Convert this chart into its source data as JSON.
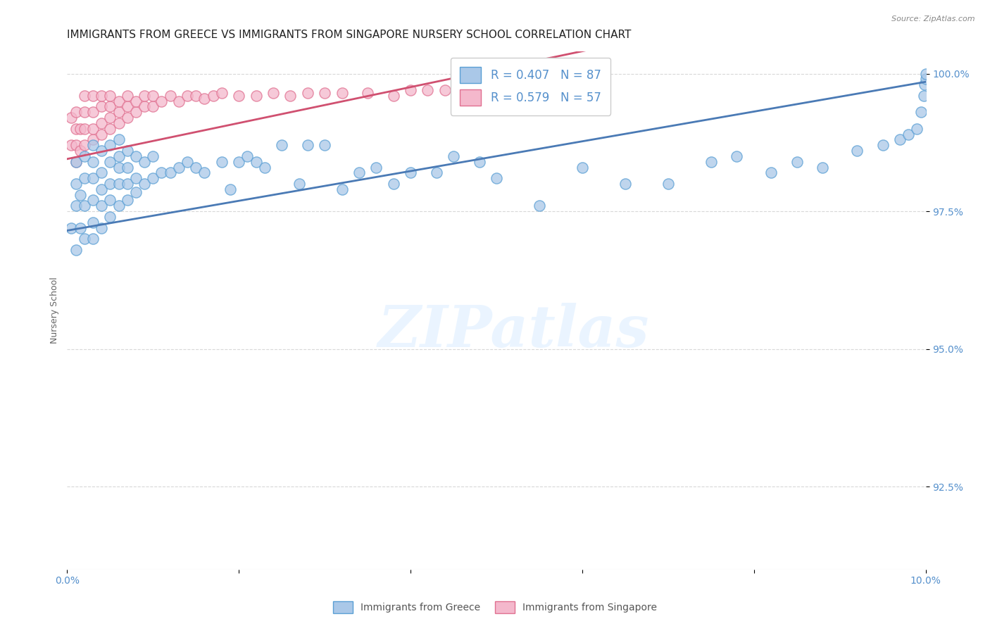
{
  "title": "IMMIGRANTS FROM GREECE VS IMMIGRANTS FROM SINGAPORE NURSERY SCHOOL CORRELATION CHART",
  "source": "Source: ZipAtlas.com",
  "ylabel": "Nursery School",
  "ytick_labels": [
    "92.5%",
    "95.0%",
    "97.5%",
    "100.0%"
  ],
  "ytick_values": [
    0.925,
    0.95,
    0.975,
    1.0
  ],
  "xlim": [
    0.0,
    0.1
  ],
  "ylim": [
    0.91,
    1.004
  ],
  "watermark_text": "ZIPatlas",
  "greece_color": "#aac8e8",
  "greece_edge_color": "#5a9fd4",
  "greece_line_color": "#4a7ab5",
  "singapore_color": "#f4b8cc",
  "singapore_edge_color": "#e07090",
  "singapore_line_color": "#d05070",
  "background_color": "#ffffff",
  "grid_color": "#d8d8d8",
  "tick_color": "#5590cc",
  "title_fontsize": 11,
  "axis_label_fontsize": 9,
  "tick_fontsize": 10,
  "greece_R": 0.407,
  "greece_N": 87,
  "singapore_R": 0.579,
  "singapore_N": 57,
  "greece_trend_x0": 0.0,
  "greece_trend_y0": 0.9715,
  "greece_trend_x1": 0.1,
  "greece_trend_y1": 0.9985,
  "singapore_trend_x0": 0.0,
  "singapore_trend_y0": 0.9845,
  "singapore_trend_x1": 0.046,
  "singapore_trend_y1": 0.9995,
  "greece_scatter_x": [
    0.0005,
    0.001,
    0.001,
    0.001,
    0.001,
    0.0015,
    0.0015,
    0.002,
    0.002,
    0.002,
    0.002,
    0.003,
    0.003,
    0.003,
    0.003,
    0.003,
    0.003,
    0.004,
    0.004,
    0.004,
    0.004,
    0.004,
    0.005,
    0.005,
    0.005,
    0.005,
    0.005,
    0.006,
    0.006,
    0.006,
    0.006,
    0.006,
    0.007,
    0.007,
    0.007,
    0.007,
    0.008,
    0.008,
    0.008,
    0.009,
    0.009,
    0.01,
    0.01,
    0.011,
    0.012,
    0.013,
    0.014,
    0.015,
    0.016,
    0.018,
    0.019,
    0.02,
    0.021,
    0.022,
    0.023,
    0.025,
    0.027,
    0.028,
    0.03,
    0.032,
    0.034,
    0.036,
    0.038,
    0.04,
    0.043,
    0.045,
    0.048,
    0.05,
    0.055,
    0.06,
    0.065,
    0.07,
    0.075,
    0.078,
    0.082,
    0.085,
    0.088,
    0.092,
    0.095,
    0.097,
    0.098,
    0.099,
    0.0995,
    0.0998,
    0.0999,
    0.1,
    0.1
  ],
  "greece_scatter_y": [
    0.972,
    0.968,
    0.976,
    0.98,
    0.984,
    0.972,
    0.978,
    0.97,
    0.976,
    0.981,
    0.985,
    0.97,
    0.973,
    0.977,
    0.981,
    0.984,
    0.987,
    0.972,
    0.976,
    0.979,
    0.982,
    0.986,
    0.974,
    0.977,
    0.98,
    0.984,
    0.987,
    0.976,
    0.98,
    0.983,
    0.985,
    0.988,
    0.977,
    0.98,
    0.983,
    0.986,
    0.9785,
    0.981,
    0.985,
    0.98,
    0.984,
    0.981,
    0.985,
    0.982,
    0.982,
    0.983,
    0.984,
    0.983,
    0.982,
    0.984,
    0.979,
    0.984,
    0.985,
    0.984,
    0.983,
    0.987,
    0.98,
    0.987,
    0.987,
    0.979,
    0.982,
    0.983,
    0.98,
    0.982,
    0.982,
    0.985,
    0.984,
    0.981,
    0.976,
    0.983,
    0.98,
    0.98,
    0.984,
    0.985,
    0.982,
    0.984,
    0.983,
    0.986,
    0.987,
    0.988,
    0.989,
    0.99,
    0.993,
    0.996,
    0.998,
    0.999,
    1.0
  ],
  "singapore_scatter_x": [
    0.0005,
    0.0005,
    0.001,
    0.001,
    0.001,
    0.001,
    0.0015,
    0.0015,
    0.002,
    0.002,
    0.002,
    0.002,
    0.003,
    0.003,
    0.003,
    0.003,
    0.004,
    0.004,
    0.004,
    0.004,
    0.005,
    0.005,
    0.005,
    0.005,
    0.006,
    0.006,
    0.006,
    0.007,
    0.007,
    0.007,
    0.008,
    0.008,
    0.009,
    0.009,
    0.01,
    0.01,
    0.011,
    0.012,
    0.013,
    0.014,
    0.015,
    0.016,
    0.017,
    0.018,
    0.02,
    0.022,
    0.024,
    0.026,
    0.028,
    0.03,
    0.032,
    0.035,
    0.038,
    0.04,
    0.042,
    0.044,
    0.046
  ],
  "singapore_scatter_y": [
    0.987,
    0.992,
    0.984,
    0.987,
    0.99,
    0.993,
    0.986,
    0.99,
    0.987,
    0.99,
    0.993,
    0.996,
    0.988,
    0.99,
    0.993,
    0.996,
    0.989,
    0.991,
    0.994,
    0.996,
    0.99,
    0.992,
    0.994,
    0.996,
    0.991,
    0.993,
    0.995,
    0.992,
    0.994,
    0.996,
    0.993,
    0.995,
    0.994,
    0.996,
    0.994,
    0.996,
    0.995,
    0.996,
    0.995,
    0.996,
    0.996,
    0.9955,
    0.996,
    0.9965,
    0.996,
    0.996,
    0.9965,
    0.996,
    0.9965,
    0.9965,
    0.9965,
    0.9965,
    0.996,
    0.997,
    0.997,
    0.997,
    0.9975
  ]
}
